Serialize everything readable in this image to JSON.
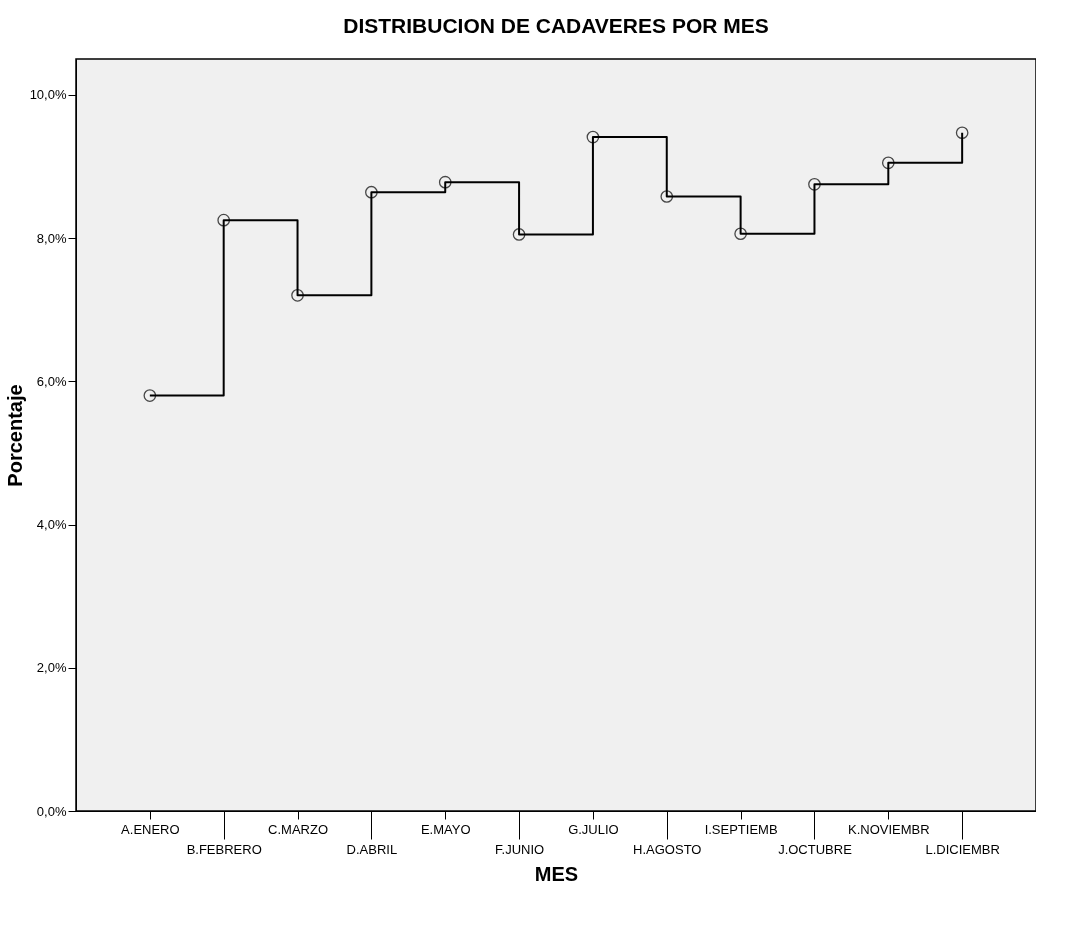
{
  "chart_data": {
    "type": "step",
    "title": "DISTRIBUCION DE CADAVERES POR MES",
    "xlabel": "MES",
    "ylabel": "Porcentaje",
    "categories": [
      "A.ENERO",
      "B.FEBRERO",
      "C.MARZO",
      "D.ABRIL",
      "E.MAYO",
      "F.JUNIO",
      "G.JULIO",
      "H.AGOSTO",
      "I.SEPTIEMB",
      "J.OCTUBRE",
      "K.NOVIEMBR",
      "L.DICIEMBR"
    ],
    "series": [
      {
        "color": "#000000",
        "values": [
          5.8,
          8.25,
          7.2,
          8.64,
          8.78,
          8.05,
          9.41,
          8.58,
          8.06,
          8.75,
          9.05,
          9.47
        ]
      }
    ],
    "ylim": [
      0,
      10.5
    ],
    "yticks": [
      {
        "value": 0,
        "label": "0,0%"
      },
      {
        "value": 2,
        "label": "2,0%"
      },
      {
        "value": 4,
        "label": "4,0%"
      },
      {
        "value": 6,
        "label": "6,0%"
      },
      {
        "value": 8,
        "label": "8,0%"
      },
      {
        "value": 10,
        "label": "10,0%"
      }
    ],
    "marker": "circle",
    "line_style": "solid",
    "grid": false
  }
}
